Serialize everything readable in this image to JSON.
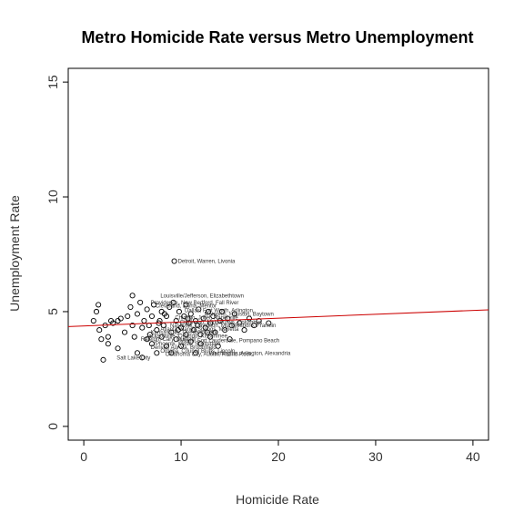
{
  "chart_data": {
    "type": "scatter",
    "title": "Metro Homicide Rate versus Metro Unemployment",
    "xlabel": "Homicide Rate",
    "ylabel": "Unemployment Rate",
    "xlim": [
      -1.6,
      41.6
    ],
    "ylim": [
      -0.6,
      15.6
    ],
    "xticks": [
      0,
      10,
      20,
      30,
      40
    ],
    "yticks": [
      0,
      5,
      10,
      15
    ],
    "grid": false,
    "point_color": "#000000",
    "trend_color": "#cc0000",
    "trendline": {
      "x": [
        -1.6,
        41.6
      ],
      "y": [
        4.35,
        5.08
      ]
    },
    "points": [
      {
        "x": 1.0,
        "y": 4.6
      },
      {
        "x": 1.3,
        "y": 5.0
      },
      {
        "x": 1.5,
        "y": 5.3
      },
      {
        "x": 1.6,
        "y": 4.2
      },
      {
        "x": 1.8,
        "y": 3.8
      },
      {
        "x": 2.0,
        "y": 2.9
      },
      {
        "x": 2.2,
        "y": 4.4
      },
      {
        "x": 2.5,
        "y": 3.9
      },
      {
        "x": 2.5,
        "y": 3.6
      },
      {
        "x": 2.8,
        "y": 4.6
      },
      {
        "x": 3.0,
        "y": 4.5
      },
      {
        "x": 3.5,
        "y": 3.4
      },
      {
        "x": 3.5,
        "y": 4.6
      },
      {
        "x": 3.8,
        "y": 4.7
      },
      {
        "x": 4.2,
        "y": 4.1
      },
      {
        "x": 4.5,
        "y": 4.8
      },
      {
        "x": 4.8,
        "y": 5.2
      },
      {
        "x": 5.0,
        "y": 5.7
      },
      {
        "x": 5.0,
        "y": 4.4
      },
      {
        "x": 5.2,
        "y": 3.9
      },
      {
        "x": 5.5,
        "y": 3.2
      },
      {
        "x": 5.5,
        "y": 4.9
      },
      {
        "x": 5.8,
        "y": 5.4
      },
      {
        "x": 6.0,
        "y": 4.3
      },
      {
        "x": 6.0,
        "y": 3.0
      },
      {
        "x": 6.2,
        "y": 4.6
      },
      {
        "x": 6.5,
        "y": 3.8
      },
      {
        "x": 6.5,
        "y": 5.1
      },
      {
        "x": 6.8,
        "y": 4.0
      },
      {
        "x": 7.0,
        "y": 4.8
      },
      {
        "x": 7.0,
        "y": 3.6
      },
      {
        "x": 7.2,
        "y": 5.3
      },
      {
        "x": 7.5,
        "y": 4.2
      },
      {
        "x": 7.5,
        "y": 3.2
      },
      {
        "x": 7.8,
        "y": 4.6
      },
      {
        "x": 8.0,
        "y": 5.0
      },
      {
        "x": 8.0,
        "y": 3.9
      },
      {
        "x": 8.2,
        "y": 4.4
      },
      {
        "x": 8.5,
        "y": 4.8
      },
      {
        "x": 8.5,
        "y": 3.5
      },
      {
        "x": 8.8,
        "y": 5.2
      },
      {
        "x": 9.0,
        "y": 4.1
      },
      {
        "x": 9.0,
        "y": 3.2
      },
      {
        "x": 9.3,
        "y": 7.2
      },
      {
        "x": 9.5,
        "y": 4.6
      },
      {
        "x": 9.5,
        "y": 3.8
      },
      {
        "x": 9.8,
        "y": 5.0
      },
      {
        "x": 10.0,
        "y": 4.3
      },
      {
        "x": 10.0,
        "y": 3.5
      },
      {
        "x": 10.3,
        "y": 4.8
      },
      {
        "x": 10.5,
        "y": 4.0
      },
      {
        "x": 10.5,
        "y": 5.3
      },
      {
        "x": 10.8,
        "y": 4.5
      },
      {
        "x": 11.0,
        "y": 3.7
      },
      {
        "x": 11.0,
        "y": 4.9
      },
      {
        "x": 11.3,
        "y": 4.2
      },
      {
        "x": 11.5,
        "y": 3.2
      },
      {
        "x": 11.5,
        "y": 4.6
      },
      {
        "x": 11.8,
        "y": 5.1
      },
      {
        "x": 12.0,
        "y": 4.0
      },
      {
        "x": 12.0,
        "y": 3.6
      },
      {
        "x": 12.3,
        "y": 4.7
      },
      {
        "x": 12.5,
        "y": 4.3
      },
      {
        "x": 12.8,
        "y": 5.0
      },
      {
        "x": 13.0,
        "y": 3.9
      },
      {
        "x": 13.0,
        "y": 4.5
      },
      {
        "x": 13.3,
        "y": 4.8
      },
      {
        "x": 13.5,
        "y": 4.1
      },
      {
        "x": 13.8,
        "y": 3.5
      },
      {
        "x": 14.0,
        "y": 4.6
      },
      {
        "x": 14.2,
        "y": 5.0
      },
      {
        "x": 14.5,
        "y": 4.2
      },
      {
        "x": 14.8,
        "y": 4.7
      },
      {
        "x": 15.0,
        "y": 3.8
      },
      {
        "x": 15.2,
        "y": 4.4
      },
      {
        "x": 15.5,
        "y": 4.9
      },
      {
        "x": 16.0,
        "y": 4.5
      },
      {
        "x": 16.5,
        "y": 4.2
      },
      {
        "x": 17.0,
        "y": 4.7
      },
      {
        "x": 17.5,
        "y": 4.4
      },
      {
        "x": 18.0,
        "y": 4.6
      },
      {
        "x": 19.0,
        "y": 4.5
      },
      {
        "x": 8.3,
        "y": 4.9
      },
      {
        "x": 9.2,
        "y": 5.4
      },
      {
        "x": 10.7,
        "y": 4.7
      },
      {
        "x": 11.7,
        "y": 4.4
      },
      {
        "x": 12.7,
        "y": 4.1
      },
      {
        "x": 7.7,
        "y": 4.5
      },
      {
        "x": 6.7,
        "y": 4.4
      },
      {
        "x": 9.7,
        "y": 4.2
      }
    ],
    "point_labels": [
      {
        "x": 9.3,
        "y": 7.2,
        "text": "Detroit, Warren, Livonia"
      },
      {
        "x": 7.5,
        "y": 5.7,
        "text": "Louisville/Jefferson, Elizabethtown"
      },
      {
        "x": 6.5,
        "y": 5.4,
        "text": "Providence, New Bedford, Fall River"
      },
      {
        "x": 7.0,
        "y": 5.25,
        "text": "Cleveland, Elyria, Mentor"
      },
      {
        "x": 10.0,
        "y": 5.05,
        "text": "Dallas, Fort Worth, Arlington"
      },
      {
        "x": 12.0,
        "y": 4.9,
        "text": "Memphis, Houston, Baytown"
      },
      {
        "x": 9.0,
        "y": 4.75,
        "text": "Chicago, Joliet, Naperville"
      },
      {
        "x": 9.5,
        "y": 4.55,
        "text": "Cincinnati, Middletown, Columbus"
      },
      {
        "x": 8.5,
        "y": 4.4,
        "text": "Nashville, Davidson, Murfreesboro, Franklin"
      },
      {
        "x": 7.5,
        "y": 4.25,
        "text": "Atlanta, Sandy Springs, Marietta"
      },
      {
        "x": 6.5,
        "y": 4.1,
        "text": "Kansas City, Overland Park"
      },
      {
        "x": 6.0,
        "y": 3.95,
        "text": "Jacksonville, Orlando, Kissimmee"
      },
      {
        "x": 5.5,
        "y": 3.8,
        "text": "Raleigh, Cary, Durham"
      },
      {
        "x": 9.5,
        "y": 3.75,
        "text": "Miami, Fort Lauderdale, Pompano Beach"
      },
      {
        "x": 7.0,
        "y": 3.6,
        "text": "Phoenix, Mesa, Scottsdale"
      },
      {
        "x": 6.5,
        "y": 3.45,
        "text": "Denver, Aurora, Broomfield"
      },
      {
        "x": 7.5,
        "y": 3.3,
        "text": "Omaha, Council Bluffs, Lincoln"
      },
      {
        "x": 8.0,
        "y": 3.15,
        "text": "Oklahoma City, Austin, Round Rock"
      },
      {
        "x": 12.5,
        "y": 3.2,
        "text": "Washington, Arlington, Alexandria"
      },
      {
        "x": 3.0,
        "y": 3.0,
        "text": "Salt Lake City"
      }
    ]
  }
}
